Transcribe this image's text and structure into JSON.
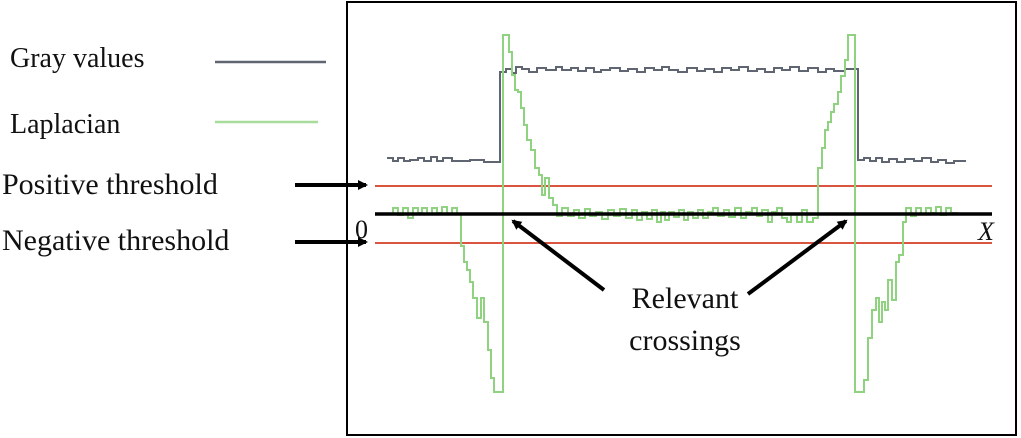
{
  "legend": {
    "gray_label": "Gray values",
    "laplacian_label": "Laplacian",
    "gray_color": "#5f6672",
    "laplacian_color": "#8fd27f"
  },
  "labels": {
    "positive_threshold": "Positive threshold",
    "negative_threshold": "Negative threshold",
    "zero": "0",
    "x_axis": "X",
    "relevant_line1": "Relevant",
    "relevant_line2": "crossings"
  },
  "colors": {
    "threshold": "#d9553f",
    "axis": "#000000",
    "frame": "#000000"
  }
}
